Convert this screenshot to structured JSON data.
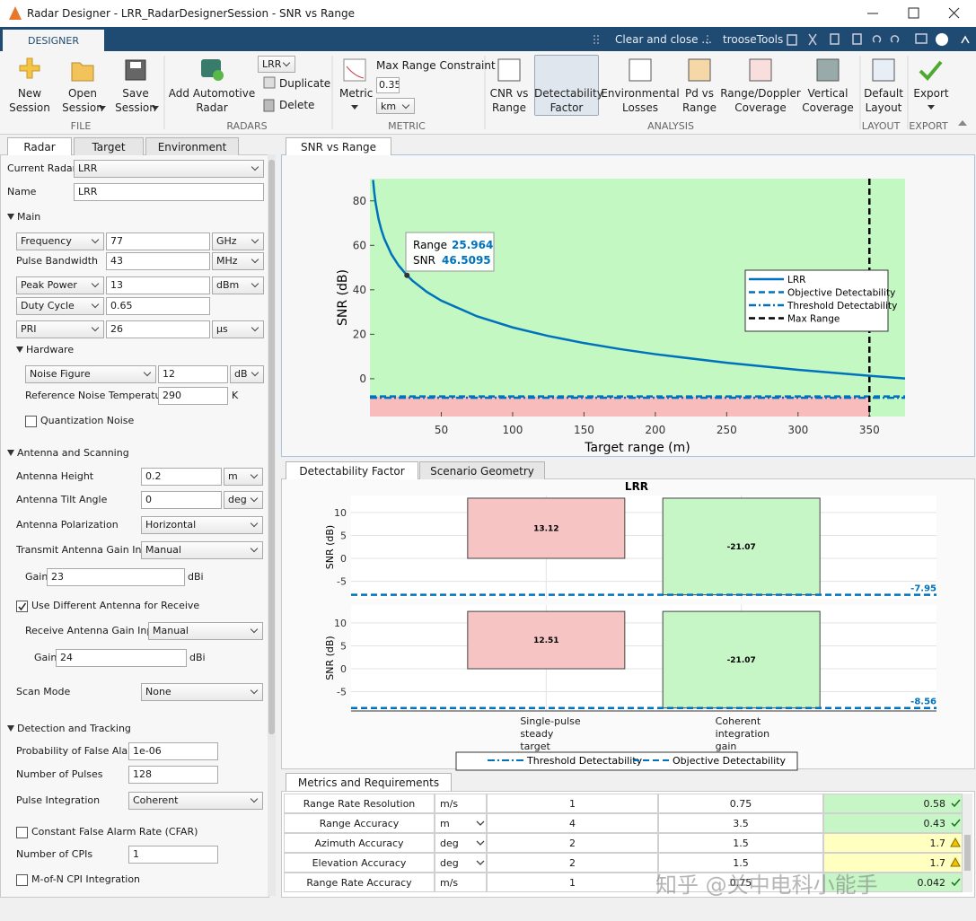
{
  "window": {
    "title": "Radar Designer - LRR_RadarDesignerSession - SNR vs Range"
  },
  "toolstrip": {
    "tab": "DESIGNER",
    "quick_access": [
      "Clear and close ...",
      "trooseTools"
    ],
    "groups": {
      "file": {
        "label": "FILE",
        "buttons": [
          "New Session",
          "Open Session",
          "Save Session"
        ]
      },
      "radars": {
        "label": "RADARS",
        "add": "Add Automotive Radar",
        "current": "LRR",
        "actions": [
          "Duplicate",
          "Delete"
        ]
      },
      "metric": {
        "label": "METRIC",
        "button": "Metric",
        "constraint": "Max Range Constraint",
        "value": "0.35",
        "unit": "km"
      },
      "analysis": {
        "label": "ANALYSIS",
        "buttons": [
          "CNR vs Range",
          "Detectability Factor",
          "Environmental Losses",
          "Pd vs Range",
          "Range/Doppler Coverage",
          "Vertical Coverage"
        ],
        "selected": 1
      },
      "layout": {
        "label": "LAYOUT",
        "buttons": [
          "Default Layout"
        ]
      },
      "export": {
        "label": "EXPORT",
        "buttons": [
          "Export"
        ]
      }
    }
  },
  "left_panel": {
    "tabs": [
      "Radar",
      "Target",
      "Environment"
    ],
    "sections": [
      "Main",
      "Hardware",
      "Antenna and Scanning",
      "Detection and Tracking"
    ],
    "fields": [
      {
        "label": "Current Radar",
        "value": "LRR"
      },
      {
        "label": "Name",
        "value": "LRR"
      },
      {
        "label": "Frequency",
        "value": "77",
        "unit": "GHz"
      },
      {
        "label": "Pulse Bandwidth",
        "value": "43",
        "unit": "MHz"
      },
      {
        "label": "Peak Power",
        "value": "13",
        "unit": "dBm"
      },
      {
        "label": "Duty Cycle",
        "value": "0.65"
      },
      {
        "label": "PRI",
        "value": "26",
        "unit": "μs"
      },
      {
        "label": "Noise Figure",
        "value": "12",
        "unit": "dB"
      },
      {
        "label": "Reference Noise Temperature",
        "value": "290",
        "unit": "K"
      },
      {
        "label": "Antenna Height",
        "value": "0.2",
        "unit": "m"
      },
      {
        "label": "Antenna Tilt Angle",
        "value": "0",
        "unit": "deg"
      },
      {
        "label": "Antenna Polarization",
        "value": "Horizontal"
      },
      {
        "label": "Transmit Antenna Gain Input",
        "value": "Manual"
      },
      {
        "label": "Gain",
        "value": "23",
        "unit": "dBi"
      },
      {
        "label": "Receive Antenna Gain Input",
        "value": "Manual"
      },
      {
        "label": "Gain",
        "value": "24",
        "unit": "dBi"
      },
      {
        "label": "Scan Mode",
        "value": "None"
      },
      {
        "label": "Probability of False Alarm",
        "value": "1e-06"
      },
      {
        "label": "Number of Pulses",
        "value": "128"
      },
      {
        "label": "Pulse Integration",
        "value": "Coherent"
      },
      {
        "label": "Number of CPIs",
        "value": "1"
      }
    ],
    "checkboxes": [
      {
        "label": "Quantization Noise",
        "checked": false
      },
      {
        "label": "Use Different Antenna for Receive",
        "checked": true
      },
      {
        "label": "Constant False Alarm Rate (CFAR)",
        "checked": false
      },
      {
        "label": "M-of-N CPI Integration",
        "checked": false
      }
    ]
  },
  "plot_tabs": {
    "top": [
      "SNR vs Range"
    ],
    "middle": [
      "Detectability Factor",
      "Scenario Geometry"
    ],
    "bottom": [
      "Metrics and Requirements"
    ]
  },
  "chart_data": [
    {
      "type": "line",
      "xlabel": "Target range (m)",
      "ylabel": "SNR (dB)",
      "x": [
        2.2,
        3,
        4,
        6,
        8,
        10,
        15,
        20,
        25.964,
        30,
        40,
        50,
        75,
        100,
        125,
        150,
        175,
        200,
        250,
        300,
        350,
        375
      ],
      "series": [
        {
          "name": "LRR",
          "color": "#0072bd",
          "values": [
            89.39,
            84.0,
            78.99,
            71.96,
            66.96,
            63.08,
            56.04,
            51.04,
            46.51,
            44.0,
            39.0,
            35.13,
            28.08,
            23.08,
            19.21,
            16.04,
            13.36,
            11.04,
            7.17,
            4.0,
            1.32,
            0.12
          ]
        }
      ],
      "hlines": [
        {
          "name": "Objective Detectability",
          "value": -7.95,
          "style": "dashed",
          "color": "#0072bd"
        },
        {
          "name": "Threshold Detectability",
          "value": -8.56,
          "style": "dashdot",
          "color": "#0072bd"
        }
      ],
      "vlines": [
        {
          "name": "Max Range",
          "value": 350,
          "style": "dashed",
          "color": "#000000"
        }
      ],
      "datatip": {
        "labels": [
          "Range",
          "SNR"
        ],
        "x": 25.964,
        "y": 46.5095
      },
      "xlim": [
        0,
        375
      ],
      "xticks": [
        50,
        100,
        150,
        200,
        250,
        300,
        350
      ],
      "ylim": [
        -17,
        90
      ],
      "yticks": [
        0,
        20,
        40,
        60,
        80
      ],
      "legend": "right"
    },
    {
      "type": "waterfall",
      "title": "LRR",
      "categories": [
        [
          "Single-pulse",
          "steady",
          "target"
        ],
        [
          "Coherent",
          "integration",
          "gain"
        ]
      ],
      "subplots": [
        {
          "ylabel": "SNR (dB)",
          "values": [
            13.12,
            -21.07
          ],
          "ylim": [
            -8.8,
            13.7
          ],
          "yticks": [
            -5,
            0,
            5,
            10
          ],
          "line": {
            "value": -7.95,
            "style": "dashed"
          }
        },
        {
          "ylabel": "SNR (dB)",
          "values": [
            12.51,
            -21.07
          ],
          "ylim": [
            -9.2,
            13.9
          ],
          "yticks": [
            -5,
            0,
            5,
            10
          ],
          "line": {
            "value": -8.56,
            "style": "dashed"
          }
        }
      ],
      "colors": [
        "#f7c4c4",
        "#c6f5c6"
      ],
      "line_color": "#0072bd",
      "legend": [
        {
          "name": "Threshold Detectability",
          "style": "dashdot"
        },
        {
          "name": "Objective Detectability",
          "style": "dashed"
        }
      ]
    }
  ],
  "metrics": {
    "rows": [
      [
        "Range Rate Resolution",
        "m/s",
        "1",
        "0.75",
        "0.58"
      ],
      [
        "Range Accuracy",
        "m",
        "4",
        "3.5",
        "0.43"
      ],
      [
        "Azimuth Accuracy",
        "deg",
        "2",
        "1.5",
        "1.7"
      ],
      [
        "Elevation Accuracy",
        "deg",
        "2",
        "1.5",
        "1.7"
      ],
      [
        "Range Rate Accuracy",
        "m/s",
        "1",
        "0.75",
        "0.042"
      ]
    ],
    "unit_dropdown": [
      false,
      true,
      true,
      true,
      false
    ],
    "status": [
      "pass",
      "pass",
      "warn",
      "warn",
      "pass"
    ]
  },
  "watermark": "知乎 @关中电科小能手"
}
